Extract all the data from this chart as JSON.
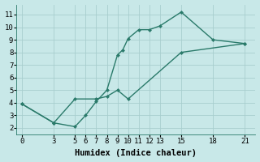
{
  "line1_x": [
    0,
    3,
    5,
    6,
    7,
    8,
    9,
    9.5,
    10,
    11,
    12,
    13,
    15,
    18,
    21
  ],
  "line1_y": [
    3.9,
    2.4,
    2.1,
    3.0,
    4.1,
    5.0,
    7.8,
    8.2,
    9.1,
    9.8,
    9.8,
    10.1,
    11.2,
    9.0,
    8.7
  ],
  "line2_x": [
    0,
    3,
    5,
    7,
    8,
    9,
    10,
    15,
    21
  ],
  "line2_y": [
    3.9,
    2.4,
    4.3,
    4.3,
    4.5,
    5.0,
    4.3,
    8.0,
    8.7
  ],
  "color": "#2a7a6a",
  "bg_color": "#c8e8e8",
  "grid_color": "#a8cece",
  "xlabel": "Humidex (Indice chaleur)",
  "xlim": [
    -0.5,
    22
  ],
  "ylim": [
    1.5,
    11.8
  ],
  "xticks": [
    0,
    3,
    5,
    6,
    7,
    8,
    9,
    10,
    11,
    12,
    13,
    15,
    18,
    21
  ],
  "yticks": [
    2,
    3,
    4,
    5,
    6,
    7,
    8,
    9,
    10,
    11
  ],
  "marker": "D",
  "markersize": 2.5,
  "linewidth": 1.0,
  "xlabel_fontsize": 7.5,
  "tick_fontsize": 6.5
}
